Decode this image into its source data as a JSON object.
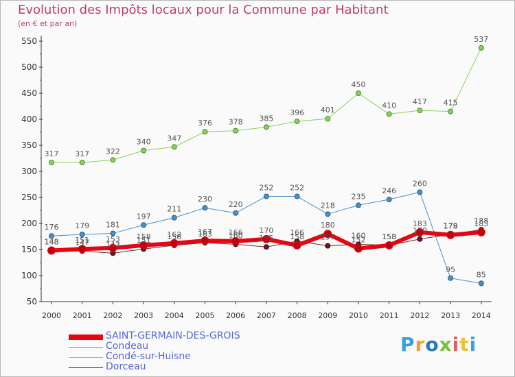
{
  "title": "Evolution des Impôts locaux pour la Commune par Habitant",
  "subtitle": "(en € et par an)",
  "logo": {
    "text": "Proxiti",
    "colors": [
      "#3aa0d8",
      "#f0a030",
      "#2a7ab8",
      "#7ac040",
      "#e06060",
      "#f0c030",
      "#3aa0d8"
    ]
  },
  "chart_data": {
    "type": "line",
    "x": [
      "2000",
      "2001",
      "2002",
      "2003",
      "2004",
      "2005",
      "2006",
      "2007",
      "2008",
      "2009",
      "2010",
      "2011",
      "2012",
      "2013",
      "2014"
    ],
    "ylim": [
      50,
      550
    ],
    "yticks": [
      50,
      100,
      150,
      200,
      250,
      300,
      350,
      400,
      450,
      500,
      550
    ],
    "grid": false,
    "legend": "bottom",
    "series": [
      {
        "name": "Condé-sur-Huisne",
        "color": "#8ccf5a",
        "values": [
          317,
          317,
          322,
          340,
          347,
          376,
          378,
          385,
          396,
          401,
          450,
          410,
          417,
          415,
          537
        ]
      },
      {
        "name": "Condeau",
        "color": "#4a90c8",
        "values": [
          176,
          179,
          181,
          197,
          211,
          230,
          220,
          252,
          252,
          218,
          235,
          246,
          260,
          95,
          85
        ]
      },
      {
        "name": "Dorceau",
        "color": "#6b2a2a",
        "values": [
          148,
          147,
          143,
          151,
          158,
          163,
          160,
          155,
          166,
          157,
          160,
          158,
          170,
          179,
          188
        ]
      },
      {
        "name": "SAINT-GERMAIN-DES-GROIS",
        "color": "#e30613",
        "values": [
          148,
          151,
          153,
          158,
          162,
          167,
          166,
          170,
          158,
          180,
          152,
          158,
          183,
          178,
          183
        ]
      }
    ],
    "label_order": [
      "Condé-sur-Huisne",
      "Condeau",
      "SAINT-GERMAIN-DES-GROIS",
      "Dorceau"
    ],
    "legend_order": [
      "SAINT-GERMAIN-DES-GROIS",
      "Condeau",
      "Condé-sur-Huisne",
      "Dorceau"
    ]
  }
}
